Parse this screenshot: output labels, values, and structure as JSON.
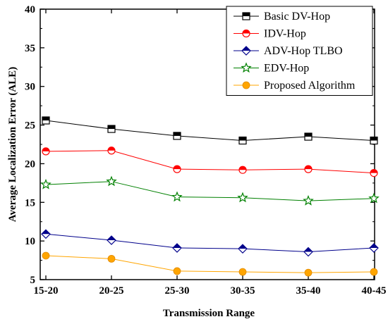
{
  "chart_data": {
    "type": "line",
    "title": "",
    "xlabel": "Transmission Range",
    "ylabel": "Average Localization Error (ALE)",
    "categories": [
      "15-20",
      "20-25",
      "25-30",
      "30-35",
      "35-40",
      "40-45"
    ],
    "ylim": [
      5,
      40
    ],
    "yticks": [
      5,
      10,
      15,
      20,
      25,
      30,
      35,
      40
    ],
    "grid": false,
    "legend_position": "top-right",
    "series": [
      {
        "name": "Basic DV-Hop",
        "color": "#000000",
        "marker": "half-filled-square",
        "values": [
          25.6,
          24.5,
          23.6,
          23.0,
          23.5,
          23.0
        ]
      },
      {
        "name": "IDV-Hop",
        "color": "#ff0000",
        "marker": "half-filled-circle",
        "values": [
          21.6,
          21.7,
          19.3,
          19.2,
          19.3,
          18.8
        ]
      },
      {
        "name": "ADV-Hop TLBO",
        "color": "#00008b",
        "marker": "half-filled-diamond",
        "values": [
          10.9,
          10.1,
          9.1,
          9.0,
          8.6,
          9.1
        ]
      },
      {
        "name": "EDV-Hop",
        "color": "#008000",
        "marker": "star",
        "values": [
          17.3,
          17.7,
          15.7,
          15.6,
          15.2,
          15.5
        ]
      },
      {
        "name": "Proposed Algorithm",
        "color": "#ffa500",
        "marker": "filled-circle",
        "values": [
          8.1,
          7.7,
          6.1,
          6.0,
          5.9,
          6.0
        ]
      }
    ]
  }
}
